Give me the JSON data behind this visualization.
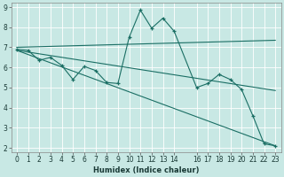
{
  "xlabel": "Humidex (Indice chaleur)",
  "background_color": "#c8e8e4",
  "grid_color": "#ffffff",
  "line_color": "#1a6e64",
  "xlim": [
    -0.5,
    23.5
  ],
  "ylim": [
    1.8,
    9.2
  ],
  "xtick_positions": [
    0,
    1,
    2,
    3,
    4,
    5,
    6,
    7,
    8,
    9,
    10,
    11,
    12,
    13,
    14,
    16,
    17,
    18,
    19,
    20,
    21,
    22,
    23
  ],
  "xtick_labels": [
    "0",
    "1",
    "2",
    "3",
    "4",
    "5",
    "6",
    "7",
    "8",
    "9",
    "10",
    "11",
    "12",
    "13",
    "14",
    "16",
    "17",
    "18",
    "19",
    "20",
    "21",
    "22",
    "23"
  ],
  "ytick_positions": [
    2,
    3,
    4,
    5,
    6,
    7,
    8,
    9
  ],
  "ytick_labels": [
    "2",
    "3",
    "4",
    "5",
    "6",
    "7",
    "8",
    "9"
  ],
  "line1_x": [
    0,
    1,
    2,
    3,
    4,
    5,
    6,
    7,
    8,
    9,
    10,
    11,
    12,
    13,
    14,
    16,
    17,
    18,
    19,
    20,
    21,
    22,
    23
  ],
  "line1_y": [
    6.9,
    6.85,
    6.35,
    6.5,
    6.1,
    5.4,
    6.05,
    5.85,
    5.25,
    5.2,
    7.5,
    8.85,
    7.95,
    8.45,
    7.8,
    5.0,
    5.2,
    5.65,
    5.4,
    4.9,
    3.6,
    2.2,
    2.1
  ],
  "line2_x": [
    0,
    23
  ],
  "line2_y": [
    7.0,
    7.35
  ],
  "line3_x": [
    0,
    23
  ],
  "line3_y": [
    6.85,
    2.1
  ],
  "line4_x": [
    0,
    23
  ],
  "line4_y": [
    6.85,
    4.85
  ],
  "xlabel_fontsize": 6.0,
  "tick_fontsize": 5.5
}
